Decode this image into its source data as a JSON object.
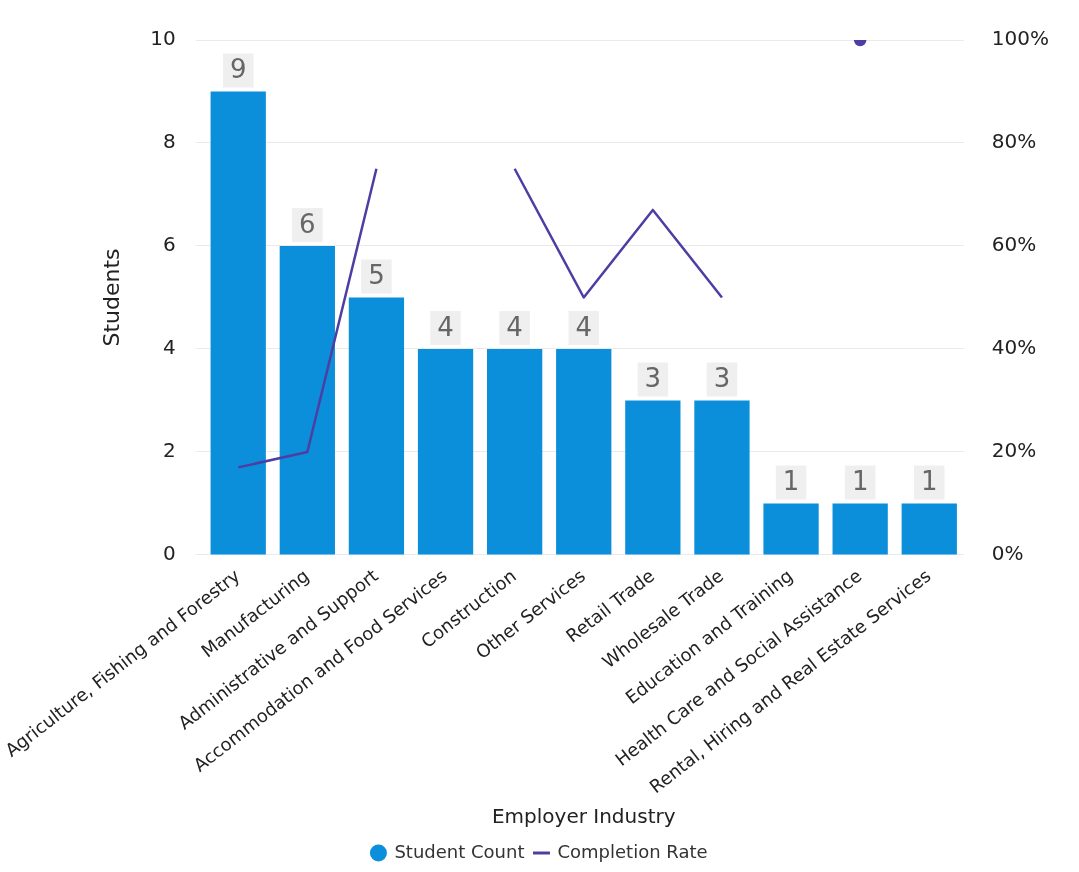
{
  "chart_data": {
    "type": "bar",
    "xlabel": "Employer Industry",
    "ylabel": "Students",
    "categories": [
      "Agriculture, Fishing and Forestry",
      "Manufacturing",
      "Administrative and Support",
      "Accommodation and Food Services",
      "Construction",
      "Other Services",
      "Retail Trade",
      "Wholesale Trade",
      "Education and Training",
      "Health Care and Social Assistance",
      "Rental, Hiring and Real Estate Services"
    ],
    "series": [
      {
        "name": "Student Count",
        "color": "#0b8fdb",
        "values": [
          9,
          6,
          5,
          4,
          4,
          4,
          3,
          3,
          1,
          1,
          1
        ],
        "value_labels": [
          "9",
          "6",
          "5",
          "4",
          "4",
          "4",
          "3",
          "3",
          "1",
          "1",
          "1"
        ]
      },
      {
        "name": "Completion Rate",
        "type": "line",
        "axis": "y2",
        "color": "#4e3ea3",
        "values": [
          17,
          20,
          75,
          null,
          75,
          50,
          67,
          50,
          null,
          100,
          null
        ]
      }
    ],
    "ylim": [
      0,
      10
    ],
    "yticks": [
      0,
      2,
      4,
      6,
      8,
      10
    ],
    "y2lim": [
      0,
      100
    ],
    "y2ticks": [
      {
        "value": 0,
        "label": "0%"
      },
      {
        "value": 20,
        "label": "20%"
      },
      {
        "value": 40,
        "label": "40%"
      },
      {
        "value": 60,
        "label": "60%"
      },
      {
        "value": 80,
        "label": "80%"
      },
      {
        "value": 100,
        "label": "100%"
      }
    ],
    "grid": "y",
    "legend": "bottom"
  }
}
